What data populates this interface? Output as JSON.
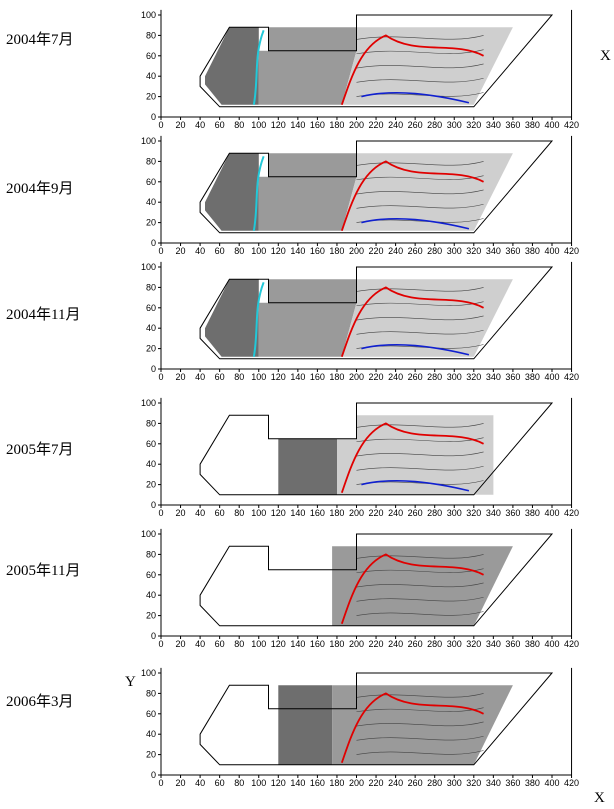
{
  "figure": {
    "x_axis_letter": "X",
    "y_axis_letter": "Y",
    "x_ticks": [
      0,
      20,
      40,
      60,
      80,
      100,
      120,
      140,
      160,
      180,
      200,
      220,
      240,
      260,
      280,
      300,
      320,
      340,
      360,
      380,
      400,
      420
    ],
    "y_ticks": [
      0,
      20,
      40,
      60,
      80,
      100
    ]
  },
  "chart_data": [
    {
      "type": "heatmap",
      "title": "2004年7月",
      "xlim": [
        0,
        420
      ],
      "ylim": [
        0,
        100
      ],
      "grid": false,
      "legend": "none"
    },
    {
      "type": "heatmap",
      "title": "2004年9月",
      "xlim": [
        0,
        420
      ],
      "ylim": [
        0,
        100
      ],
      "grid": false,
      "legend": "none"
    },
    {
      "type": "heatmap",
      "title": "2004年11月",
      "xlim": [
        0,
        420
      ],
      "ylim": [
        0,
        100
      ],
      "grid": false,
      "legend": "none"
    },
    {
      "type": "heatmap",
      "title": "2005年7月",
      "xlim": [
        0,
        420
      ],
      "ylim": [
        0,
        100
      ],
      "grid": false,
      "legend": "none"
    },
    {
      "type": "heatmap",
      "title": "2005年11月",
      "xlim": [
        0,
        420
      ],
      "ylim": [
        0,
        100
      ],
      "grid": false,
      "legend": "none"
    },
    {
      "type": "heatmap",
      "title": "2006年3月",
      "xlim": [
        0,
        420
      ],
      "ylim": [
        0,
        100
      ],
      "grid": false,
      "legend": "none"
    }
  ],
  "colors": {
    "dark_fill": "#6e6e6e",
    "mid_fill": "#9a9a9a",
    "light_fill": "#cfcfcf",
    "red_contour": "#e00000",
    "cyan_contour": "#22c8d8",
    "blue_contour": "#1020d0",
    "outline": "#000000"
  }
}
